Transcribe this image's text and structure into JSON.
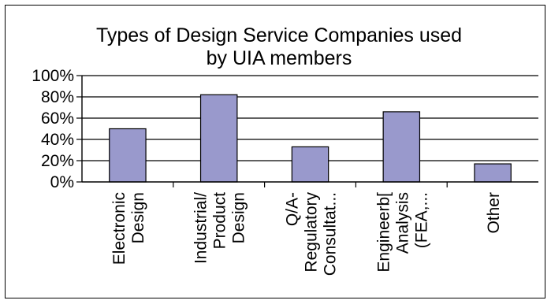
{
  "chart_data": {
    "type": "bar",
    "title_lines": [
      "Types of Design Service Companies used",
      "by UIA members"
    ],
    "categories": [
      [
        "Electronic",
        "Design"
      ],
      [
        "Industrial/",
        "Product",
        "Design"
      ],
      [
        "Q/A-",
        "Regulatory",
        "Consultat..."
      ],
      [
        "Engineerb[",
        "Analysis",
        "(FEA,..."
      ],
      [
        "Other"
      ]
    ],
    "values": [
      50,
      82,
      33,
      66,
      17
    ],
    "yticks": [
      "0%",
      "20%",
      "40%",
      "60%",
      "80%",
      "100%"
    ],
    "ylim": [
      0,
      100
    ],
    "grid": true,
    "bar_color": "#9999cc",
    "bar_edge": "#000000"
  }
}
